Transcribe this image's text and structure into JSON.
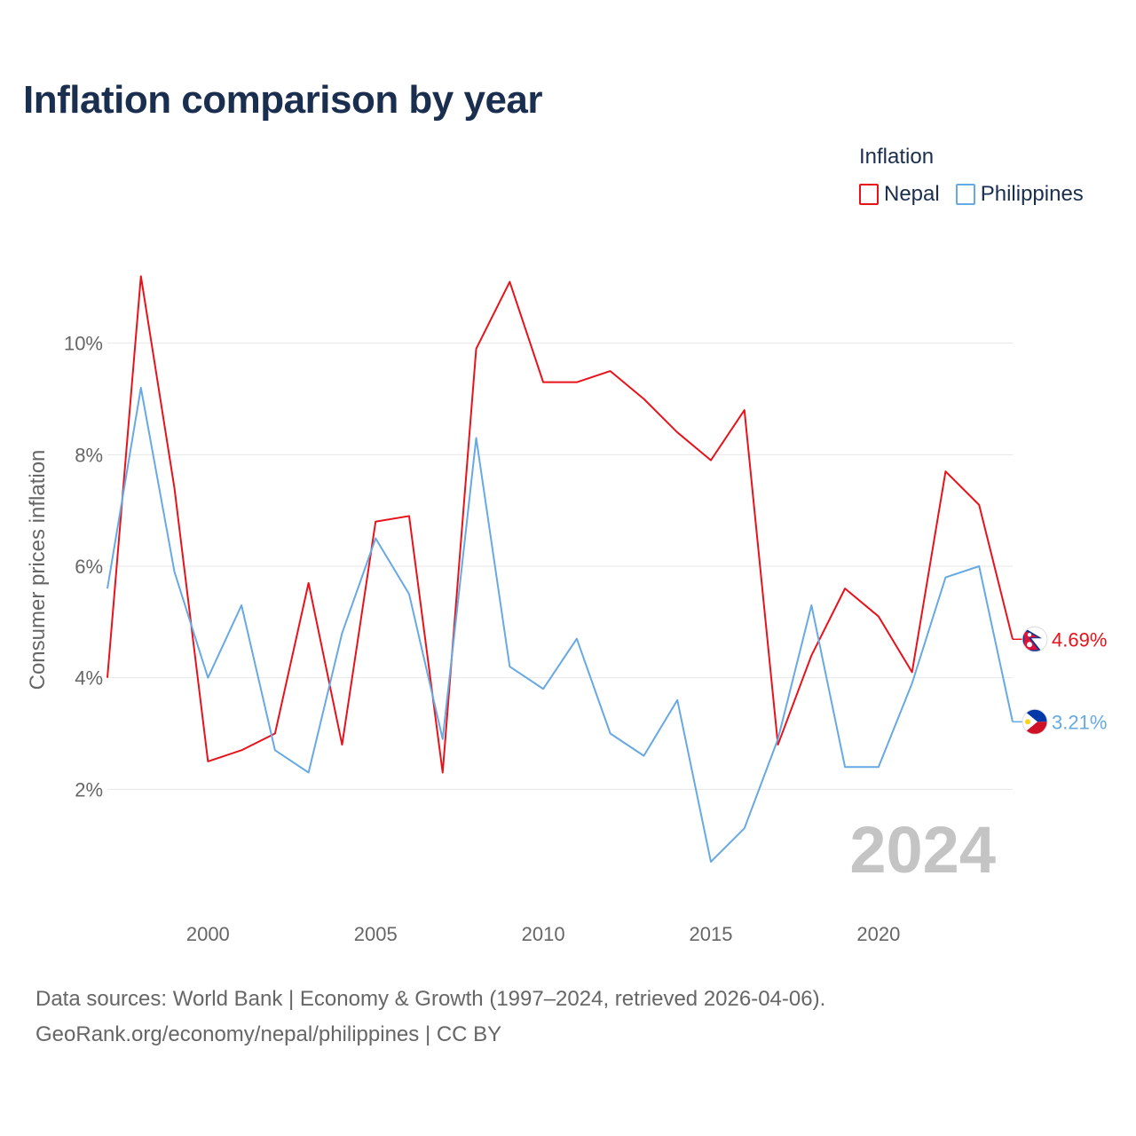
{
  "title": "Inflation comparison by year",
  "legend": {
    "title": "Inflation",
    "items": [
      {
        "name": "Nepal",
        "color": "#e8121b"
      },
      {
        "name": "Philippines",
        "color": "#66a9e3"
      }
    ]
  },
  "footer": {
    "line1": "Data sources: World Bank | Economy & Growth (1997–2024, retrieved 2026-04-06).",
    "line2": "GeoRank.org/economy/nepal/philippines | CC BY"
  },
  "chart_data": {
    "type": "line",
    "title": "Inflation comparison by year",
    "xlabel": "",
    "ylabel": "Consumer prices inflation",
    "current_year": "2024",
    "x": [
      1997,
      1998,
      1999,
      2000,
      2001,
      2002,
      2003,
      2004,
      2005,
      2006,
      2007,
      2008,
      2009,
      2010,
      2011,
      2012,
      2013,
      2014,
      2015,
      2016,
      2017,
      2018,
      2019,
      2020,
      2021,
      2022,
      2023,
      2024
    ],
    "xlim": [
      1997,
      2024
    ],
    "ylim": [
      0,
      12
    ],
    "x_ticks": [
      2000,
      2005,
      2010,
      2015,
      2020
    ],
    "y_ticks": [
      2,
      4,
      6,
      8,
      10
    ],
    "y_tick_labels": [
      "2%",
      "4%",
      "6%",
      "8%",
      "10%"
    ],
    "grid": true,
    "legend_position": "top-right",
    "series": [
      {
        "name": "Nepal",
        "color": "#e8121b",
        "values": [
          4.0,
          11.2,
          7.4,
          2.5,
          2.7,
          3.0,
          5.7,
          2.8,
          6.8,
          6.9,
          2.3,
          9.9,
          11.1,
          9.3,
          9.3,
          9.5,
          9.0,
          8.4,
          7.9,
          8.8,
          2.8,
          4.4,
          5.6,
          5.1,
          4.1,
          7.7,
          7.1,
          4.69
        ],
        "end_label": "4.69%",
        "flag": "np-flag-icon"
      },
      {
        "name": "Philippines",
        "color": "#66a9e3",
        "values": [
          5.6,
          9.2,
          5.9,
          4.0,
          5.3,
          2.7,
          2.3,
          4.8,
          6.5,
          5.5,
          2.9,
          8.3,
          4.2,
          3.8,
          4.7,
          3.0,
          2.6,
          3.6,
          0.7,
          1.3,
          2.9,
          5.3,
          2.4,
          2.4,
          3.9,
          5.8,
          6.0,
          3.21
        ],
        "end_label": "3.21%",
        "flag": "ph-flag-icon"
      }
    ]
  }
}
